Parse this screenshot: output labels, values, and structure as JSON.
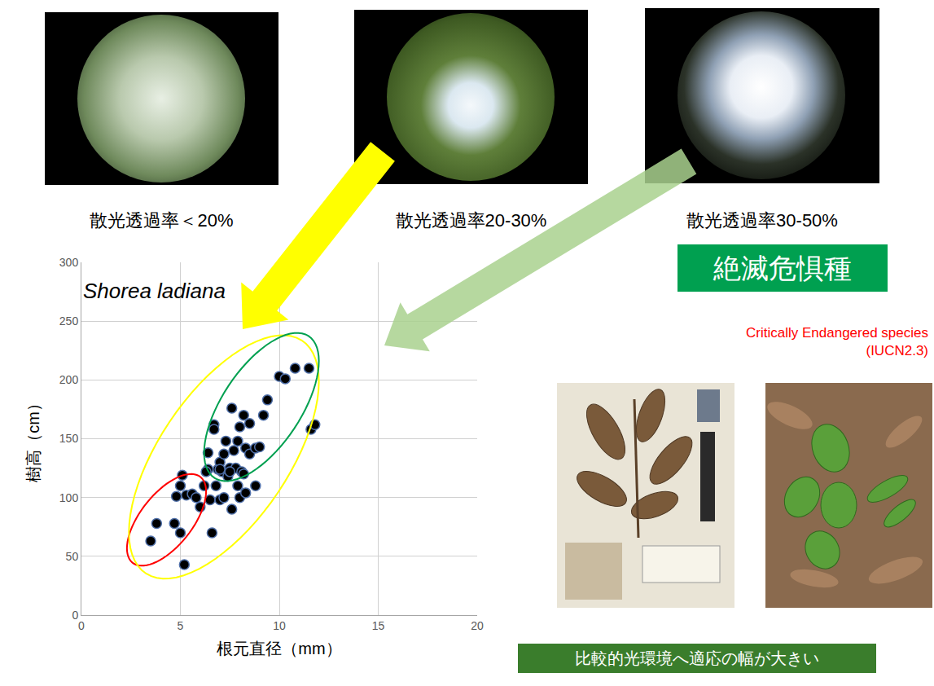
{
  "chart_data": {
    "type": "scatter",
    "title": "Shorea ladiana",
    "x_label": "根元直径（mm）",
    "y_label": "樹高（cm）",
    "x": [
      3.5,
      3.8,
      4.7,
      4.8,
      5.0,
      5.2,
      5.1,
      5.0,
      5.3,
      5.6,
      5.8,
      6.0,
      6.2,
      6.4,
      6.4,
      6.5,
      6.6,
      6.7,
      6.7,
      6.8,
      6.9,
      7.0,
      7.0,
      7.1,
      7.2,
      7.2,
      7.3,
      7.4,
      7.5,
      7.6,
      7.6,
      7.8,
      7.9,
      7.9,
      8.0,
      8.0,
      8.1,
      8.2,
      8.3,
      8.3,
      8.5,
      8.5,
      8.8,
      8.8,
      9.0,
      9.2,
      9.4,
      10.0,
      10.3,
      10.8,
      11.5,
      11.6,
      11.8,
      7.5,
      6.3,
      8.2,
      7.0,
      7.7
    ],
    "values": [
      63,
      78,
      78,
      101,
      70,
      43,
      119,
      110,
      102,
      103,
      100,
      92,
      110,
      138,
      124,
      98,
      70,
      162,
      158,
      110,
      124,
      98,
      130,
      122,
      137,
      100,
      148,
      118,
      125,
      90,
      176,
      125,
      110,
      148,
      160,
      100,
      122,
      170,
      142,
      104,
      163,
      137,
      110,
      142,
      143,
      170,
      183,
      203,
      201,
      210,
      210,
      158,
      162,
      122,
      122,
      120,
      124,
      140
    ],
    "color": "#000000",
    "marker": "circle",
    "xlim": [
      0,
      20
    ],
    "xticks": [
      0,
      5,
      10,
      15,
      20
    ],
    "ylim": [
      0,
      300
    ],
    "yticks": [
      0,
      50,
      100,
      150,
      200,
      250,
      300
    ],
    "grid": true,
    "regions": [
      {
        "color": "#ff0000",
        "xlim": [
          2.3,
          6.3
        ],
        "ylim": [
          42,
          120
        ]
      },
      {
        "color": "#ffff00",
        "xlim": [
          2.4,
          12.0
        ],
        "ylim": [
          31,
          238
        ]
      },
      {
        "color": "#00a050",
        "xlim": [
          6.2,
          12.0
        ],
        "ylim": [
          114,
          240
        ]
      }
    ]
  },
  "photo_labels": [
    "散光透過率＜20%",
    "散光透過率20-30%",
    "散光透過率30-50%"
  ],
  "badge": "絶滅危惧種",
  "status": "Critically Endangered species",
  "status_source": "(IUCN2.3)",
  "caption": "比較的光環境へ適応の幅が大きい"
}
